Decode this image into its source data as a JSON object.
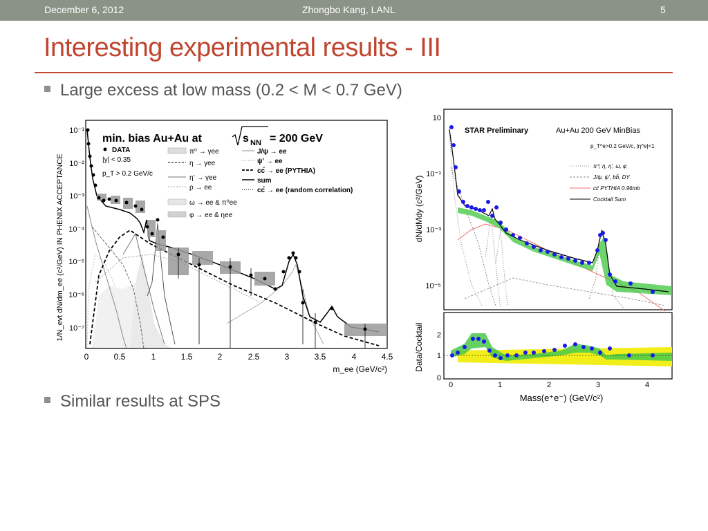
{
  "header": {
    "date": "December 6, 2012",
    "author": "Zhongbo Kang, LANL",
    "slide_number": "5"
  },
  "title": "Interesting experimental results - III",
  "bullets": [
    "Large excess at low mass (0.2 < M < 0.7 GeV)",
    "Similar results at SPS"
  ],
  "phenix_plot": {
    "title_prefix": "min. bias Au+Au at",
    "title_sqrt": "s",
    "title_sub": "NN",
    "title_suffix": "= 200 GeV",
    "ylabel": "1/N_evt dN/dm_ee (c²/GeV) IN PHENIX ACCEPTANCE",
    "xlabel": "m_ee (GeV/c²)",
    "xticks": [
      "0",
      "0.5",
      "1",
      "1.5",
      "2",
      "2.5",
      "3",
      "3.5",
      "4",
      "4.5"
    ],
    "yticks": [
      "10⁻¹",
      "10⁻²",
      "10⁻³",
      "10⁻⁴",
      "10⁻⁵",
      "10⁻⁶",
      "10⁻⁷"
    ],
    "data_label": "DATA",
    "cut_y": "|y| < 0.35",
    "cut_pt": "p_T > 0.2 GeV/c",
    "legend_left": [
      "π⁰ → γee",
      "η → γee",
      "η' → γee",
      "ρ → ee",
      "ω → ee & π⁰ee",
      "φ → ee & ηee"
    ],
    "legend_right": [
      "J/ψ → ee",
      "ψ' → ee",
      "cc̄ → ee (PYTHIA)",
      "sum",
      "cc̄ → ee (random correlation)"
    ]
  },
  "star_plot": {
    "title_left": "STAR Preliminary",
    "title_right": "Au+Au 200 GeV MinBias",
    "cuts": "p_T^e>0.2 GeV/c, |η^e|<1",
    "legend": [
      "π⁰, η, η', ω, φ",
      "J/ψ, ψ', bb̄, DY",
      "cc̄ PYTHIA 0.96mb",
      "Cocktail Sum"
    ],
    "ylabel_top": "dN/dMdy (c²/GeV)",
    "ylabel_bottom": "Data/Cocktail",
    "xlabel": "Mass(e⁺e⁻) (GeV/c²)",
    "yticks_top": [
      "10",
      "10⁻¹",
      "10⁻³",
      "10⁻⁵"
    ],
    "yticks_bottom": [
      "0",
      "1",
      "2"
    ],
    "xticks": [
      "0",
      "1",
      "2",
      "3",
      "4"
    ]
  },
  "colors": {
    "accent": "#c0452e",
    "header_bg": "#8b9387",
    "star_points": "#1a1ae6",
    "star_band_green": "#4ac94a",
    "star_band_yellow": "#f2ee1a",
    "star_charm": "#f07070"
  }
}
